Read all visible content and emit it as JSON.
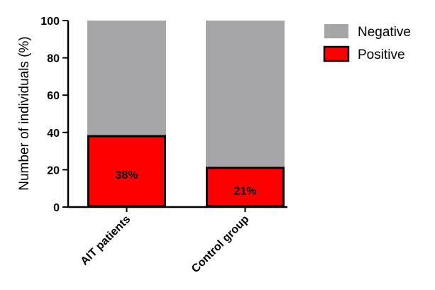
{
  "chart_data": {
    "type": "bar",
    "stacked": true,
    "categories": [
      "AIT patients",
      "Control group"
    ],
    "series": [
      {
        "name": "Positive",
        "values": [
          38,
          21
        ],
        "color": "#ff0000"
      },
      {
        "name": "Negative",
        "values": [
          62,
          79
        ],
        "color": "#a6a6a8"
      }
    ],
    "data_labels": [
      "38%",
      "21%"
    ],
    "ylabel": "Number of individuals (%)",
    "ylim": [
      0,
      100
    ],
    "yticks": [
      0,
      20,
      40,
      60,
      80,
      100
    ],
    "legend_position": "top-right",
    "grid": false
  }
}
